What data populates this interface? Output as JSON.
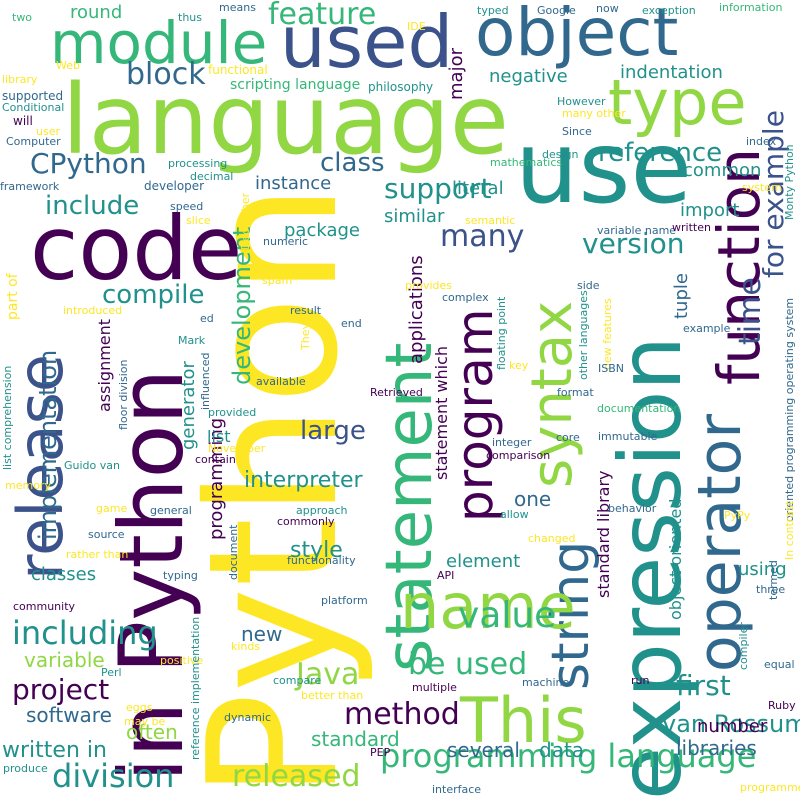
{
  "title": "Python word cloud",
  "palette": {
    "c1": "#440154",
    "c2": "#3b528b",
    "c3": "#21918c",
    "c4": "#5ec962",
    "c5": "#fde725",
    "c6": "#31688e",
    "c7": "#35b779",
    "c8": "#90d743"
  },
  "words": [
    {
      "id": "python",
      "text": "Python"
    },
    {
      "id": "language",
      "text": "language"
    },
    {
      "id": "in_python",
      "text": "in Python"
    },
    {
      "id": "code",
      "text": "code"
    },
    {
      "id": "use",
      "text": "use"
    },
    {
      "id": "expression",
      "text": "expression"
    },
    {
      "id": "statement",
      "text": "statement"
    },
    {
      "id": "syntax",
      "text": "syntax"
    },
    {
      "id": "operator",
      "text": "operator"
    },
    {
      "id": "function",
      "text": "function"
    },
    {
      "id": "object",
      "text": "object"
    },
    {
      "id": "used",
      "text": "used"
    },
    {
      "id": "module",
      "text": "module"
    },
    {
      "id": "type",
      "text": "type"
    },
    {
      "id": "release",
      "text": "release"
    },
    {
      "id": "program",
      "text": "program"
    },
    {
      "id": "string",
      "text": "string"
    },
    {
      "id": "name",
      "text": "name"
    },
    {
      "id": "this",
      "text": "This"
    },
    {
      "id": "for_example",
      "text": "for example"
    },
    {
      "id": "cpython",
      "text": "CPython"
    },
    {
      "id": "include",
      "text": "include"
    },
    {
      "id": "including",
      "text": "including"
    },
    {
      "id": "compile",
      "text": "compile"
    },
    {
      "id": "implementation",
      "text": "implementation"
    },
    {
      "id": "block",
      "text": "block"
    },
    {
      "id": "feature",
      "text": "feature"
    },
    {
      "id": "class",
      "text": "class"
    },
    {
      "id": "support",
      "text": "support"
    },
    {
      "id": "reference",
      "text": "reference"
    },
    {
      "id": "version",
      "text": "version"
    },
    {
      "id": "many",
      "text": "many"
    },
    {
      "id": "value",
      "text": "value"
    },
    {
      "id": "method",
      "text": "method"
    },
    {
      "id": "java",
      "text": "Java"
    },
    {
      "id": "programming_language",
      "text": "programming language"
    },
    {
      "id": "division",
      "text": "division"
    },
    {
      "id": "released",
      "text": "released"
    },
    {
      "id": "project",
      "text": "project"
    },
    {
      "id": "be_used",
      "text": "be used"
    },
    {
      "id": "first",
      "text": "first"
    },
    {
      "id": "van_rossum",
      "text": "van Rossum"
    },
    {
      "id": "time",
      "text": "time"
    },
    {
      "id": "development",
      "text": "development"
    },
    {
      "id": "large",
      "text": "large"
    },
    {
      "id": "interpreter",
      "text": "interpreter"
    },
    {
      "id": "style",
      "text": "style"
    },
    {
      "id": "written_in",
      "text": "written in"
    },
    {
      "id": "software",
      "text": "software"
    },
    {
      "id": "often",
      "text": "often"
    },
    {
      "id": "standard",
      "text": "standard"
    },
    {
      "id": "several",
      "text": "several"
    },
    {
      "id": "data",
      "text": "data"
    },
    {
      "id": "libraries",
      "text": "libraries"
    },
    {
      "id": "number",
      "text": "number"
    },
    {
      "id": "variable",
      "text": "variable"
    },
    {
      "id": "new",
      "text": "new"
    },
    {
      "id": "classes",
      "text": "classes"
    },
    {
      "id": "element",
      "text": "element"
    },
    {
      "id": "one",
      "text": "one"
    },
    {
      "id": "using",
      "text": "using"
    },
    {
      "id": "tuple",
      "text": "tuple"
    },
    {
      "id": "import",
      "text": "import"
    },
    {
      "id": "common",
      "text": "common"
    },
    {
      "id": "indentation",
      "text": "indentation"
    },
    {
      "id": "negative",
      "text": "negative"
    },
    {
      "id": "round",
      "text": "round"
    },
    {
      "id": "major",
      "text": "major"
    },
    {
      "id": "instance",
      "text": "instance"
    },
    {
      "id": "literal",
      "text": "literal"
    },
    {
      "id": "similar",
      "text": "similar"
    },
    {
      "id": "package",
      "text": "package"
    },
    {
      "id": "applications",
      "text": "applications"
    },
    {
      "id": "statement_which",
      "text": "statement which"
    },
    {
      "id": "standard_library",
      "text": "standard library"
    },
    {
      "id": "object_oriented",
      "text": "object oriented"
    },
    {
      "id": "programming",
      "text": "programming"
    },
    {
      "id": "generator",
      "text": "generator"
    },
    {
      "id": "assignment",
      "text": "assignment"
    },
    {
      "id": "list",
      "text": "list"
    },
    {
      "id": "scripting_language",
      "text": "scripting language"
    },
    {
      "id": "developer",
      "text": "developer"
    },
    {
      "id": "processing",
      "text": "processing"
    },
    {
      "id": "decimal",
      "text": "decimal"
    },
    {
      "id": "speed",
      "text": "speed"
    },
    {
      "id": "slice",
      "text": "slice"
    },
    {
      "id": "functional",
      "text": "functional"
    },
    {
      "id": "philosophy",
      "text": "philosophy"
    },
    {
      "id": "supported",
      "text": "supported"
    },
    {
      "id": "conditional",
      "text": "Conditional"
    },
    {
      "id": "will",
      "text": "will"
    },
    {
      "id": "user",
      "text": "user"
    },
    {
      "id": "computer",
      "text": "Computer"
    },
    {
      "id": "framework",
      "text": "framework"
    },
    {
      "id": "library",
      "text": "library"
    },
    {
      "id": "web",
      "text": "Web"
    },
    {
      "id": "two",
      "text": "two"
    },
    {
      "id": "thus",
      "text": "thus"
    },
    {
      "id": "means",
      "text": "means"
    },
    {
      "id": "ide",
      "text": "IDE"
    },
    {
      "id": "typed",
      "text": "typed"
    },
    {
      "id": "google",
      "text": "Google"
    },
    {
      "id": "now",
      "text": "now"
    },
    {
      "id": "exception",
      "text": "exception"
    },
    {
      "id": "information",
      "text": "information"
    },
    {
      "id": "however",
      "text": "However"
    },
    {
      "id": "many_other",
      "text": "many other"
    },
    {
      "id": "since",
      "text": "Since"
    },
    {
      "id": "design",
      "text": "design"
    },
    {
      "id": "mathematics",
      "text": "mathematics"
    },
    {
      "id": "index",
      "text": "index"
    },
    {
      "id": "system",
      "text": "system"
    },
    {
      "id": "monty_python",
      "text": "Monty Python"
    },
    {
      "id": "oriented_prog_os",
      "text": "oriented programming operating system"
    },
    {
      "id": "december",
      "text": "December"
    },
    {
      "id": "numeric",
      "text": "numeric"
    },
    {
      "id": "semantic",
      "text": "semantic"
    },
    {
      "id": "variable_name",
      "text": "variable name"
    },
    {
      "id": "written",
      "text": "written"
    },
    {
      "id": "side",
      "text": "side"
    },
    {
      "id": "spam",
      "text": "spam"
    },
    {
      "id": "result",
      "text": "result"
    },
    {
      "id": "introduced",
      "text": "introduced"
    },
    {
      "id": "complex",
      "text": "complex"
    },
    {
      "id": "provides",
      "text": "provides"
    },
    {
      "id": "end",
      "text": "end"
    },
    {
      "id": "ed",
      "text": "ed"
    },
    {
      "id": "other_languages",
      "text": "other languages"
    },
    {
      "id": "new_features",
      "text": "new features"
    },
    {
      "id": "floating_point",
      "text": "floating point"
    },
    {
      "id": "key",
      "text": "key"
    },
    {
      "id": "isbn",
      "text": "ISBN"
    },
    {
      "id": "example",
      "text": "example"
    },
    {
      "id": "format",
      "text": "format"
    },
    {
      "id": "documentation",
      "text": "documentation"
    },
    {
      "id": "core",
      "text": "core"
    },
    {
      "id": "immutable",
      "text": "immutable"
    },
    {
      "id": "mark",
      "text": "Mark"
    },
    {
      "id": "they",
      "text": "They"
    },
    {
      "id": "influenced",
      "text": "influenced"
    },
    {
      "id": "available",
      "text": "available"
    },
    {
      "id": "retrieved",
      "text": "Retrieved"
    },
    {
      "id": "floor_division",
      "text": "floor division"
    },
    {
      "id": "provided",
      "text": "provided"
    },
    {
      "id": "november",
      "text": "November"
    },
    {
      "id": "integer",
      "text": "integer"
    },
    {
      "id": "comparison",
      "text": "comparison"
    },
    {
      "id": "memory",
      "text": "memory"
    },
    {
      "id": "guido_van",
      "text": "Guido van"
    },
    {
      "id": "contain",
      "text": "contain"
    },
    {
      "id": "list_comprehension",
      "text": "list comprehension"
    },
    {
      "id": "game",
      "text": "game"
    },
    {
      "id": "general",
      "text": "general"
    },
    {
      "id": "approach",
      "text": "approach"
    },
    {
      "id": "commonly",
      "text": "commonly"
    },
    {
      "id": "allow",
      "text": "allow"
    },
    {
      "id": "behavior",
      "text": "behavior"
    },
    {
      "id": "source",
      "text": "source"
    },
    {
      "id": "document",
      "text": "document"
    },
    {
      "id": "changed",
      "text": "changed"
    },
    {
      "id": "in_contrast",
      "text": "In contrast"
    },
    {
      "id": "pypy",
      "text": "PyPy"
    },
    {
      "id": "rather_than",
      "text": "rather than"
    },
    {
      "id": "typing",
      "text": "typing"
    },
    {
      "id": "functionality",
      "text": "functionality"
    },
    {
      "id": "api",
      "text": "API"
    },
    {
      "id": "termed",
      "text": "termed"
    },
    {
      "id": "three",
      "text": "three"
    },
    {
      "id": "community",
      "text": "community"
    },
    {
      "id": "platform",
      "text": "platform"
    },
    {
      "id": "single",
      "text": "single"
    },
    {
      "id": "kinds",
      "text": "kinds"
    },
    {
      "id": "compiler",
      "text": "compiler"
    },
    {
      "id": "equal",
      "text": "equal"
    },
    {
      "id": "positive",
      "text": "positive"
    },
    {
      "id": "perl",
      "text": "Perl"
    },
    {
      "id": "compare",
      "text": "compare"
    },
    {
      "id": "machine",
      "text": "machine"
    },
    {
      "id": "run",
      "text": "run"
    },
    {
      "id": "multiple",
      "text": "multiple"
    },
    {
      "id": "better_than",
      "text": "better than"
    },
    {
      "id": "eggs",
      "text": "eggs"
    },
    {
      "id": "may_be",
      "text": "may be"
    },
    {
      "id": "dynamic",
      "text": "dynamic"
    },
    {
      "id": "ruby",
      "text": "Ruby"
    },
    {
      "id": "pep",
      "text": "PEP"
    },
    {
      "id": "produce",
      "text": "produce"
    },
    {
      "id": "interface",
      "text": "interface"
    },
    {
      "id": "programmer",
      "text": "programmer"
    },
    {
      "id": "ref_impl",
      "text": "reference implementation"
    },
    {
      "id": "part_of",
      "text": "part of"
    }
  ]
}
